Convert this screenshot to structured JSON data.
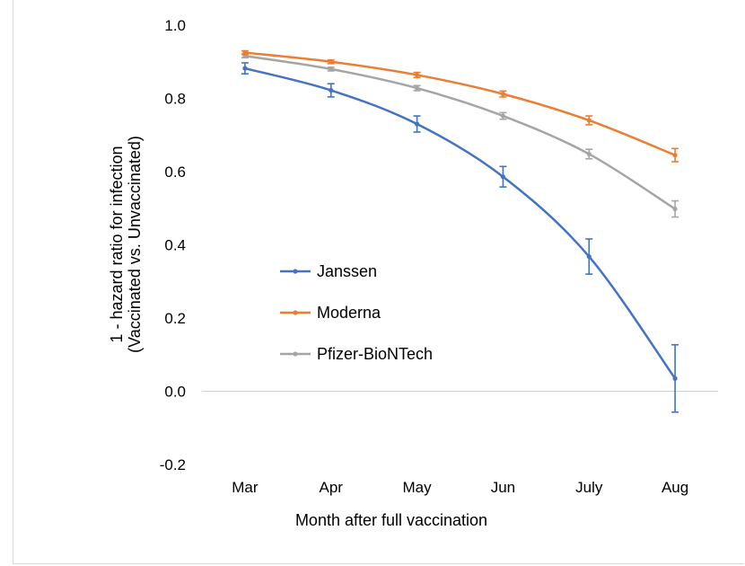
{
  "chart_data": {
    "type": "line",
    "title": "",
    "xlabel": "Month after full vaccination",
    "ylabel_line1": "1 - hazard ratio for infection",
    "ylabel_line2": "(Vaccinated vs. Unvaccinated)",
    "categories": [
      "Mar",
      "Apr",
      "May",
      "Jun",
      "July",
      "Aug"
    ],
    "ylim": [
      -0.2,
      1.0
    ],
    "yticks": [
      "1.0",
      "0.8",
      "0.6",
      "0.4",
      "0.2",
      "0.0",
      "-0.2"
    ],
    "grid": false,
    "legend_position": "center-left",
    "series": [
      {
        "name": "Janssen",
        "color": "#4472C4",
        "values": [
          0.882,
          0.822,
          0.73,
          0.586,
          0.368,
          0.035
        ],
        "err": [
          0.015,
          0.018,
          0.022,
          0.028,
          0.048,
          0.092
        ]
      },
      {
        "name": "Moderna",
        "color": "#ED7D31",
        "values": [
          0.925,
          0.9,
          0.864,
          0.812,
          0.74,
          0.645
        ],
        "err": [
          0.005,
          0.005,
          0.007,
          0.008,
          0.012,
          0.018
        ]
      },
      {
        "name": "Pfizer-BioNTech",
        "color": "#A5A5A5",
        "values": [
          0.916,
          0.88,
          0.828,
          0.752,
          0.648,
          0.498
        ],
        "err": [
          0.005,
          0.005,
          0.007,
          0.009,
          0.013,
          0.022
        ]
      }
    ]
  }
}
